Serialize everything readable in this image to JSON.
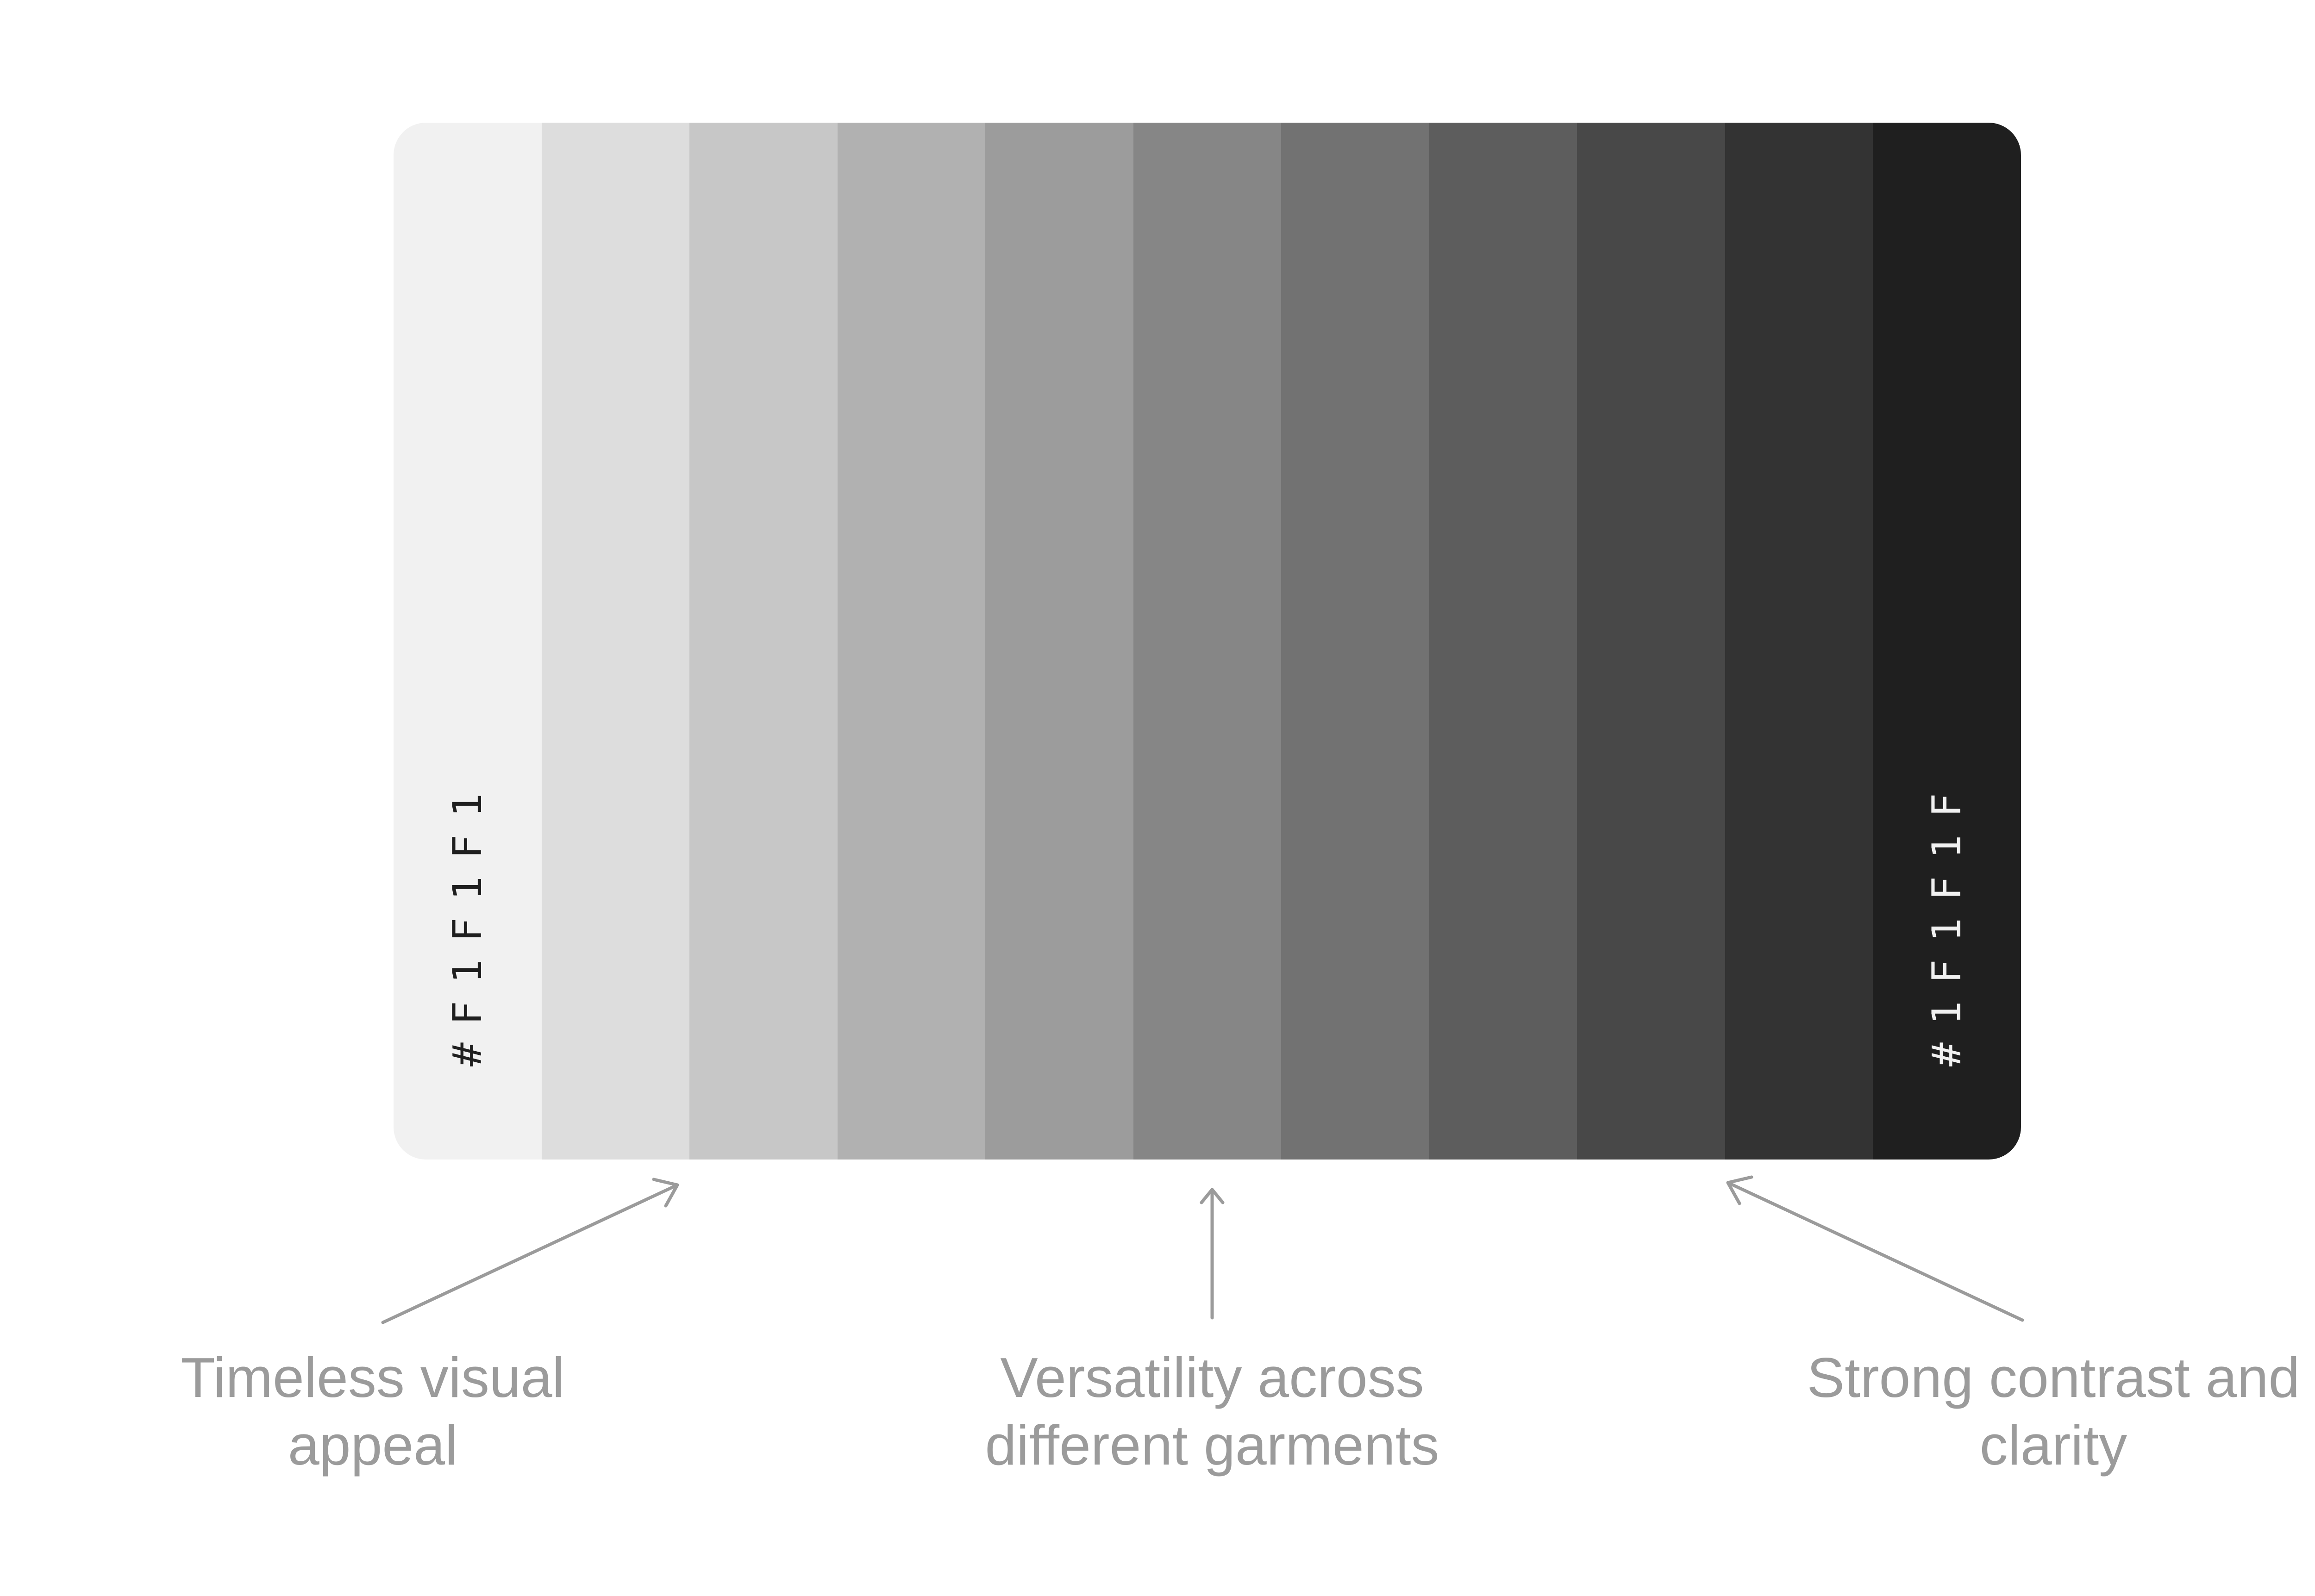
{
  "palette": {
    "swatches": [
      "#F1F1F1",
      "#DDDDDD",
      "#C7C7C7",
      "#B1B1B1",
      "#9C9C9C",
      "#868686",
      "#727272",
      "#5D5D5D",
      "#484848",
      "#333333",
      "#1F1F1F"
    ],
    "first_label": "#F1F1F1",
    "last_label": "#1F1F1F",
    "first_label_color": "#1F1F1F",
    "last_label_color": "#F1F1F1"
  },
  "annotations": {
    "arrow_color": "#9b9b9b",
    "text_color": "#9b9b9b",
    "left": {
      "line1": "Timeless visual",
      "line2": "appeal"
    },
    "center": {
      "line1": "Versatility across",
      "line2": "different garments"
    },
    "right": {
      "line1": "Strong contrast and",
      "line2": "clarity"
    }
  }
}
